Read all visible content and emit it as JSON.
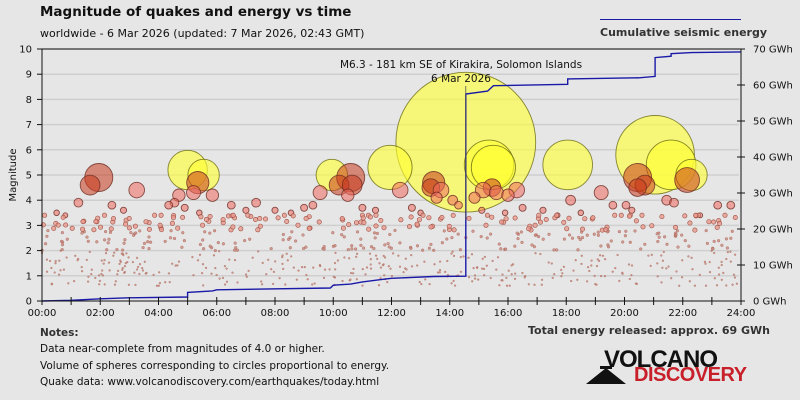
{
  "header": {
    "title": "Magnitude of quakes and energy vs time",
    "subtitle": "worldwide -  6 Mar 2026 (updated: 7 Mar 2026, 02:43 GMT)"
  },
  "legend": {
    "line_label": "Cumulative seismic energy",
    "line_color": "#1a1aa8"
  },
  "footer": {
    "notes_title": "Notes:",
    "notes": [
      "Data near-complete from magnitudes of 4.0 or higher.",
      "Volume of spheres corresponding to circles proportional to energy.",
      "Quake data: www.volcanodiscovery.com/earthquakes/today.html"
    ],
    "total_energy": "Total energy released: approx. 69 GWh"
  },
  "logo": {
    "line1": "VOLCANO",
    "line2": "DISCOVERY",
    "line2_color": "#c8202a"
  },
  "chart_data": {
    "type": "scatter",
    "title": "Magnitude of quakes and energy vs time",
    "xlabel": "",
    "ylabel": "Magnitude",
    "y2label": "Cumulative seismic energy",
    "xlim": [
      0,
      24
    ],
    "ylim": [
      0,
      10
    ],
    "y2lim": [
      0,
      70
    ],
    "grid": true,
    "legend_position": "top-right",
    "x_ticks": [
      "00:00",
      "02:00",
      "04:00",
      "06:00",
      "08:00",
      "10:00",
      "12:00",
      "14:00",
      "16:00",
      "18:00",
      "20:00",
      "22:00",
      "24:00"
    ],
    "y_ticks": [
      "0",
      "1",
      "2",
      "3",
      "4",
      "5",
      "6",
      "7",
      "8",
      "9",
      "10"
    ],
    "y2_ticks": [
      "0 GWh",
      "10 GWh",
      "20 GWh",
      "30 GWh",
      "40 GWh",
      "50 GWh",
      "60 GWh",
      "70 GWh"
    ],
    "annotation": {
      "text_line1": "M6.3 - 181 km SE of Kirakira, Solomon Islands",
      "text_line2": "6 Mar 2026",
      "hour": 14.55,
      "magnitude": 6.3
    },
    "quakes": [
      {
        "hour": 14.55,
        "mag": 6.3
      },
      {
        "hour": 21.05,
        "mag": 5.8
      },
      {
        "hour": 21.6,
        "mag": 5.4
      },
      {
        "hour": 15.35,
        "mag": 5.4
      },
      {
        "hour": 15.5,
        "mag": 5.3
      },
      {
        "hour": 18.05,
        "mag": 5.4
      },
      {
        "hour": 11.95,
        "mag": 5.3
      },
      {
        "hour": 5.0,
        "mag": 5.2
      },
      {
        "hour": 5.55,
        "mag": 5.0
      },
      {
        "hour": 9.95,
        "mag": 5.0
      },
      {
        "hour": 20.45,
        "mag": 4.9
      },
      {
        "hour": 22.3,
        "mag": 5.0
      },
      {
        "hour": 22.15,
        "mag": 4.8
      },
      {
        "hour": 1.95,
        "mag": 4.9
      },
      {
        "hour": 1.65,
        "mag": 4.6
      },
      {
        "hour": 5.35,
        "mag": 4.7
      },
      {
        "hour": 10.6,
        "mag": 4.9
      },
      {
        "hour": 10.2,
        "mag": 4.6
      },
      {
        "hour": 10.65,
        "mag": 4.6
      },
      {
        "hour": 13.45,
        "mag": 4.7
      },
      {
        "hour": 13.35,
        "mag": 4.5
      },
      {
        "hour": 13.7,
        "mag": 4.4
      },
      {
        "hour": 20.7,
        "mag": 4.6
      },
      {
        "hour": 20.45,
        "mag": 4.5
      },
      {
        "hour": 15.15,
        "mag": 4.4
      },
      {
        "hour": 15.45,
        "mag": 4.5
      },
      {
        "hour": 15.6,
        "mag": 4.3
      },
      {
        "hour": 14.85,
        "mag": 4.1
      },
      {
        "hour": 3.25,
        "mag": 4.4
      },
      {
        "hour": 4.7,
        "mag": 4.2
      },
      {
        "hour": 5.2,
        "mag": 4.3
      },
      {
        "hour": 5.85,
        "mag": 4.2
      },
      {
        "hour": 9.55,
        "mag": 4.3
      },
      {
        "hour": 10.5,
        "mag": 4.2
      },
      {
        "hour": 12.3,
        "mag": 4.4
      },
      {
        "hour": 16.3,
        "mag": 4.4
      },
      {
        "hour": 18.15,
        "mag": 4.0
      },
      {
        "hour": 19.2,
        "mag": 4.3
      },
      {
        "hour": 21.45,
        "mag": 4.0
      },
      {
        "hour": 14.1,
        "mag": 4.0
      },
      {
        "hour": 13.55,
        "mag": 4.1
      },
      {
        "hour": 16.0,
        "mag": 4.2
      },
      {
        "hour": 0.5,
        "mag": 3.5
      },
      {
        "hour": 0.8,
        "mag": 3.4
      },
      {
        "hour": 1.25,
        "mag": 3.9
      },
      {
        "hour": 2.4,
        "mag": 3.8
      },
      {
        "hour": 2.8,
        "mag": 3.6
      },
      {
        "hour": 4.35,
        "mag": 3.8
      },
      {
        "hour": 4.55,
        "mag": 3.9
      },
      {
        "hour": 4.9,
        "mag": 3.7
      },
      {
        "hour": 5.4,
        "mag": 3.5
      },
      {
        "hour": 6.5,
        "mag": 3.8
      },
      {
        "hour": 7.0,
        "mag": 3.6
      },
      {
        "hour": 7.35,
        "mag": 3.9
      },
      {
        "hour": 8.0,
        "mag": 3.6
      },
      {
        "hour": 8.55,
        "mag": 3.5
      },
      {
        "hour": 9.0,
        "mag": 3.7
      },
      {
        "hour": 9.3,
        "mag": 3.8
      },
      {
        "hour": 11.0,
        "mag": 3.7
      },
      {
        "hour": 11.45,
        "mag": 3.6
      },
      {
        "hour": 12.7,
        "mag": 3.7
      },
      {
        "hour": 13.0,
        "mag": 3.5
      },
      {
        "hour": 14.3,
        "mag": 3.8
      },
      {
        "hour": 15.1,
        "mag": 3.6
      },
      {
        "hour": 15.9,
        "mag": 3.5
      },
      {
        "hour": 16.5,
        "mag": 3.7
      },
      {
        "hour": 17.2,
        "mag": 3.6
      },
      {
        "hour": 17.7,
        "mag": 3.4
      },
      {
        "hour": 18.5,
        "mag": 3.5
      },
      {
        "hour": 19.6,
        "mag": 3.8
      },
      {
        "hour": 20.05,
        "mag": 3.8
      },
      {
        "hour": 20.25,
        "mag": 3.6
      },
      {
        "hour": 21.7,
        "mag": 3.9
      },
      {
        "hour": 22.6,
        "mag": 3.4
      },
      {
        "hour": 23.2,
        "mag": 3.8
      },
      {
        "hour": 23.65,
        "mag": 3.8
      }
    ],
    "cumulative_energy_gwh": [
      {
        "hour": 0.0,
        "value": 0.0
      },
      {
        "hour": 1.0,
        "value": 0.2
      },
      {
        "hour": 2.0,
        "value": 0.6
      },
      {
        "hour": 3.0,
        "value": 0.9
      },
      {
        "hour": 5.0,
        "value": 1.1
      },
      {
        "hour": 5.0,
        "value": 2.4
      },
      {
        "hour": 5.85,
        "value": 2.8
      },
      {
        "hour": 6.0,
        "value": 3.1
      },
      {
        "hour": 9.9,
        "value": 3.6
      },
      {
        "hour": 10.0,
        "value": 4.4
      },
      {
        "hour": 10.6,
        "value": 4.7
      },
      {
        "hour": 11.0,
        "value": 5.3
      },
      {
        "hour": 12.0,
        "value": 6.3
      },
      {
        "hour": 13.45,
        "value": 6.8
      },
      {
        "hour": 14.55,
        "value": 6.9
      },
      {
        "hour": 14.55,
        "value": 57.5
      },
      {
        "hour": 15.3,
        "value": 58.3
      },
      {
        "hour": 15.5,
        "value": 59.8
      },
      {
        "hour": 18.05,
        "value": 60.2
      },
      {
        "hour": 18.05,
        "value": 61.7
      },
      {
        "hour": 20.5,
        "value": 62.0
      },
      {
        "hour": 21.05,
        "value": 62.4
      },
      {
        "hour": 21.05,
        "value": 67.6
      },
      {
        "hour": 21.6,
        "value": 68.0
      },
      {
        "hour": 21.6,
        "value": 68.7
      },
      {
        "hour": 22.3,
        "value": 69.0
      },
      {
        "hour": 24.0,
        "value": 69.2
      }
    ]
  }
}
